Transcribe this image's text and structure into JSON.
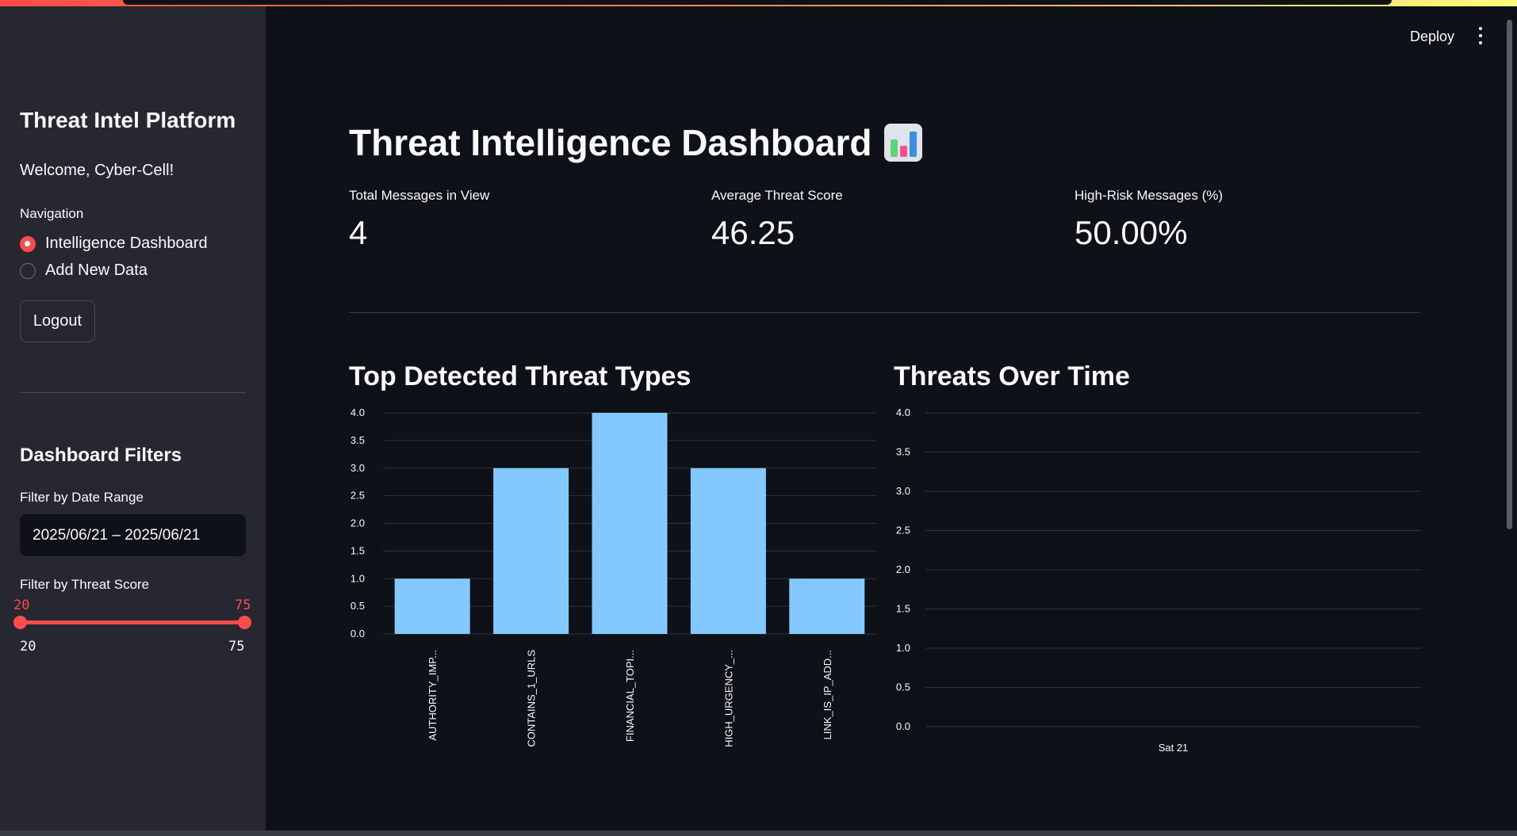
{
  "sidebar": {
    "title": "Threat Intel Platform",
    "welcome": "Welcome, Cyber-Cell!",
    "nav_label": "Navigation",
    "nav_items": [
      {
        "label": "Intelligence Dashboard",
        "selected": true
      },
      {
        "label": "Add New Data",
        "selected": false
      }
    ],
    "logout_label": "Logout",
    "filters_title": "Dashboard Filters",
    "date_label": "Filter by Date Range",
    "date_value": "2025/06/21 – 2025/06/21",
    "score_label": "Filter by Threat Score",
    "score_low": "20",
    "score_high": "75",
    "score_min": "20",
    "score_max": "75"
  },
  "header": {
    "deploy_label": "Deploy",
    "menu_icon": "kebab-menu-icon"
  },
  "main": {
    "title": "Threat Intelligence Dashboard",
    "title_icon": "bar-chart-emoji-icon",
    "metrics": [
      {
        "label": "Total Messages in View",
        "value": "4"
      },
      {
        "label": "Average Threat Score",
        "value": "46.25"
      },
      {
        "label": "High-Risk Messages (%)",
        "value": "50.00%"
      }
    ],
    "chart1_title": "Top Detected Threat Types",
    "chart2_title": "Threats Over Time"
  },
  "colors": {
    "accent": "#ff4b4b",
    "bar": "#83c9ff",
    "background": "#0e1117",
    "sidebar": "#262730"
  },
  "chart_data": [
    {
      "type": "bar",
      "title": "Top Detected Threat Types",
      "categories": [
        "AUTHORITY_IMP...",
        "CONTAINS_1_URLS",
        "FINANCIAL_TOPI...",
        "HIGH_URGENCY_...",
        "LINK_IS_IP_ADD..."
      ],
      "values": [
        1,
        3,
        4,
        3,
        1
      ],
      "yticks": [
        "0.0",
        "0.5",
        "1.0",
        "1.5",
        "2.0",
        "2.5",
        "3.0",
        "3.5",
        "4.0"
      ],
      "ylim": [
        0,
        4
      ],
      "grid": true
    },
    {
      "type": "line",
      "title": "Threats Over Time",
      "x": [
        "Sat 21"
      ],
      "series": [],
      "yticks": [
        "0.0",
        "0.5",
        "1.0",
        "1.5",
        "2.0",
        "2.5",
        "3.0",
        "3.5",
        "4.0"
      ],
      "ylim": [
        0,
        4
      ],
      "grid": true
    }
  ]
}
